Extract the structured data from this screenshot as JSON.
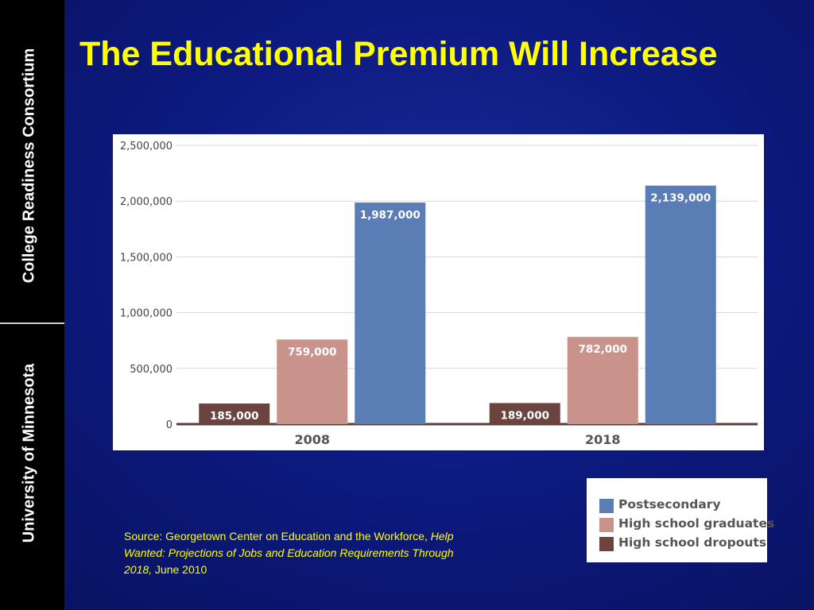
{
  "sidebar": {
    "top_text": "College Readiness Consortium",
    "bottom_text": "University of Minnesota"
  },
  "title": "The Educational Premium Will Increase",
  "source": {
    "lead": "Source:  Georgetown Center on Education and the Workforce, ",
    "italic": "Help Wanted:  Projections of Jobs and Education Requirements Through 2018,",
    "tail": " June 2010"
  },
  "colors": {
    "postsecondary": "#5a7db5",
    "hs_graduates": "#c9928a",
    "hs_dropouts": "#6b4440",
    "title": "#ffff00",
    "background": "#0d1a80"
  },
  "chart_data": {
    "type": "bar",
    "categories": [
      "2008",
      "2018"
    ],
    "series": [
      {
        "name": "High school dropouts",
        "values": [
          185000,
          189000
        ],
        "labels": [
          "185,000",
          "189,000"
        ]
      },
      {
        "name": "High school graduates",
        "values": [
          759000,
          782000
        ],
        "labels": [
          "759,000",
          "782,000"
        ]
      },
      {
        "name": "Postsecondary",
        "values": [
          1987000,
          2139000
        ],
        "labels": [
          "1,987,000",
          "2,139,000"
        ]
      }
    ],
    "ylim": [
      0,
      2500000
    ],
    "yticks": [
      0,
      500000,
      1000000,
      1500000,
      2000000,
      2500000
    ],
    "ytick_labels": [
      "0",
      "500,000",
      "1,000,000",
      "1,500,000",
      "2,000,000",
      "2,500,000"
    ],
    "grid": true,
    "legend": {
      "placement": "bottom-right",
      "entries": [
        "Postsecondary",
        "High school graduates",
        "High school dropouts"
      ]
    }
  }
}
